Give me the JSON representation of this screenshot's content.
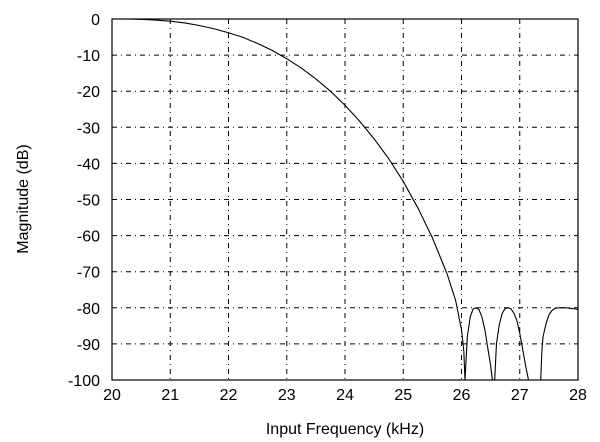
{
  "chart_data": {
    "type": "line",
    "title": "",
    "xlabel": "Input Frequency (kHz)",
    "ylabel": "Magnitude (dB)",
    "xlim": [
      20,
      28
    ],
    "ylim": [
      -100,
      0
    ],
    "xticks": [
      20,
      21,
      22,
      23,
      24,
      25,
      26,
      27,
      28
    ],
    "yticks": [
      0,
      -10,
      -20,
      -30,
      -40,
      -50,
      -60,
      -70,
      -80,
      -90,
      -100
    ],
    "grid": true,
    "series": [
      {
        "x": [
          20,
          20.25,
          20.5,
          20.75,
          21,
          21.25,
          21.5,
          21.75,
          22,
          22.25,
          22.5,
          22.75,
          23,
          23.25,
          23.5,
          23.75,
          24,
          24.25,
          24.5,
          24.75,
          25,
          25.25,
          25.5,
          25.75,
          25.9,
          26.0,
          26.04,
          26.06,
          26.1,
          26.15,
          26.2,
          26.25,
          26.3,
          26.35,
          26.4,
          26.45,
          26.5,
          26.53,
          26.55,
          26.57,
          26.6,
          26.65,
          26.7,
          26.75,
          26.8,
          26.85,
          26.9,
          26.95,
          27.0,
          27.05,
          27.1,
          27.15,
          27.2,
          27.25,
          27.3,
          27.33,
          27.36,
          27.38,
          27.4,
          27.45,
          27.5,
          27.55,
          27.6,
          27.65,
          27.7,
          27.75,
          27.8,
          27.85,
          27.9,
          27.95,
          28.0
        ],
        "y": [
          0,
          0,
          -0.1,
          -0.3,
          -0.6,
          -1.1,
          -1.8,
          -2.7,
          -3.8,
          -5.1,
          -6.8,
          -8.7,
          -11.0,
          -13.6,
          -16.6,
          -20.0,
          -23.9,
          -28.3,
          -33.2,
          -38.7,
          -45.0,
          -52.3,
          -60.6,
          -70.5,
          -78.0,
          -86.0,
          -92.0,
          -100,
          -88.0,
          -82.5,
          -80.3,
          -80.0,
          -80.5,
          -82.5,
          -86.0,
          -91.0,
          -96.0,
          -100,
          -100,
          -100,
          -90.0,
          -84.5,
          -81.5,
          -80.2,
          -80.0,
          -80.3,
          -81.5,
          -83.5,
          -87.0,
          -91.5,
          -96.0,
          -100,
          -100,
          -100,
          -100,
          -100,
          -100,
          -92.0,
          -88.0,
          -84.5,
          -82.0,
          -80.8,
          -80.2,
          -80.0,
          -80.0,
          -80.0,
          -80.0,
          -80.1,
          -80.2,
          -80.3,
          -80.5
        ]
      }
    ]
  }
}
